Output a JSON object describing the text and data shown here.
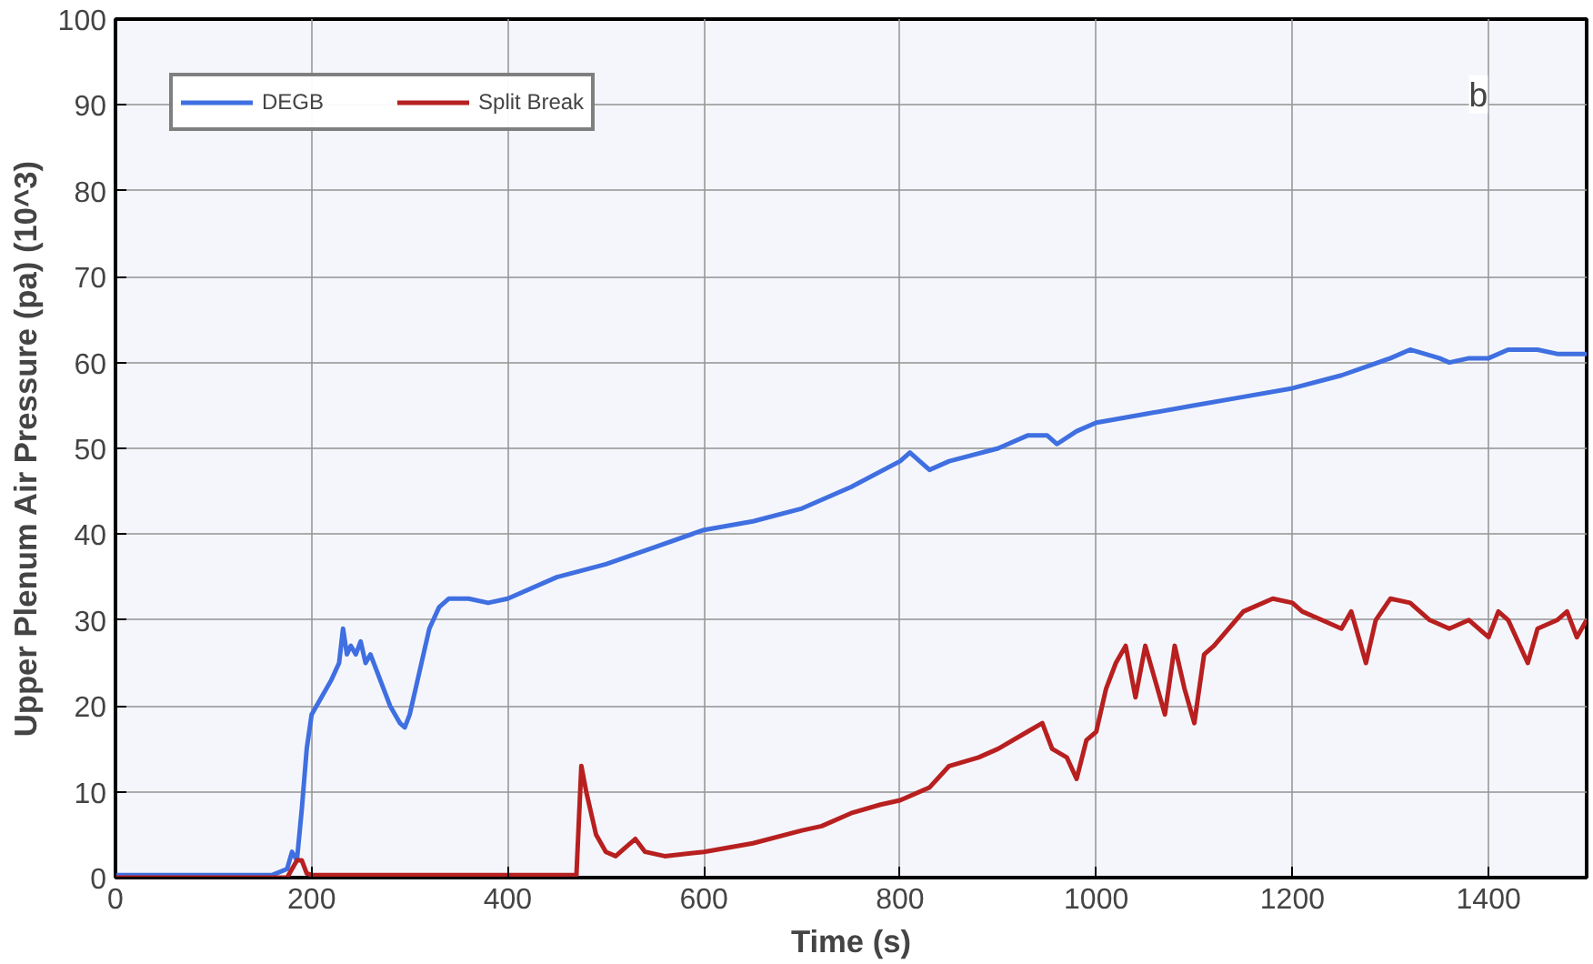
{
  "chart_data": {
    "type": "line",
    "xlabel": "Time (s)",
    "ylabel": "Upper Plenum Air Pressure (pa) (10^3)",
    "xlim": [
      0,
      1500
    ],
    "ylim": [
      0,
      100
    ],
    "xticks": [
      0,
      200,
      400,
      600,
      800,
      1000,
      1200,
      1400
    ],
    "yticks": [
      0,
      10,
      20,
      30,
      40,
      50,
      60,
      70,
      80,
      90,
      100
    ],
    "grid": true,
    "legend": "top left",
    "annotations": [
      "b"
    ],
    "series": [
      {
        "name": "DEGB",
        "color": "#3f6fe0",
        "x": [
          0,
          160,
          175,
          180,
          185,
          190,
          195,
          200,
          210,
          220,
          228,
          232,
          236,
          240,
          245,
          250,
          255,
          260,
          270,
          280,
          290,
          295,
          300,
          310,
          320,
          330,
          340,
          360,
          380,
          400,
          450,
          500,
          550,
          600,
          650,
          700,
          750,
          800,
          810,
          820,
          830,
          850,
          900,
          930,
          950,
          960,
          980,
          1000,
          1050,
          1100,
          1150,
          1200,
          1250,
          1300,
          1320,
          1350,
          1360,
          1380,
          1400,
          1420,
          1450,
          1470,
          1500
        ],
        "values": [
          0.3,
          0.3,
          1,
          3,
          2,
          8,
          15,
          19,
          21,
          23,
          25,
          29,
          26,
          27,
          26,
          27.5,
          25,
          26,
          23,
          20,
          18,
          17.5,
          19,
          24,
          29,
          31.5,
          32.5,
          32.5,
          32,
          32.5,
          35,
          36.5,
          38.5,
          40.5,
          41.5,
          43,
          45.5,
          48.5,
          49.5,
          48.5,
          47.5,
          48.5,
          50,
          51.5,
          51.5,
          50.5,
          52,
          53,
          54,
          55,
          56,
          57,
          58.5,
          60.5,
          61.5,
          60.5,
          60,
          60.5,
          60.5,
          61.5,
          61.5,
          61,
          61
        ]
      },
      {
        "name": "Split Break",
        "color": "#b82020",
        "x": [
          0,
          175,
          185,
          190,
          195,
          200,
          300,
          400,
          470,
          475,
          480,
          490,
          500,
          510,
          520,
          530,
          540,
          560,
          600,
          650,
          700,
          720,
          750,
          780,
          800,
          830,
          850,
          880,
          900,
          930,
          945,
          955,
          970,
          980,
          990,
          1000,
          1010,
          1020,
          1030,
          1040,
          1050,
          1060,
          1070,
          1080,
          1090,
          1100,
          1110,
          1120,
          1150,
          1180,
          1200,
          1210,
          1230,
          1250,
          1260,
          1275,
          1285,
          1300,
          1320,
          1340,
          1360,
          1380,
          1400,
          1410,
          1420,
          1440,
          1450,
          1470,
          1480,
          1490,
          1500
        ],
        "values": [
          0,
          0,
          2,
          2,
          0.5,
          0.3,
          0.3,
          0.3,
          0.3,
          13,
          10,
          5,
          3,
          2.5,
          3.5,
          4.5,
          3,
          2.5,
          3,
          4,
          5.5,
          6,
          7.5,
          8.5,
          9,
          10.5,
          13,
          14,
          15,
          17,
          18,
          15,
          14,
          11.5,
          16,
          17,
          22,
          25,
          27,
          21,
          27,
          23,
          19,
          27,
          22,
          18,
          26,
          27,
          31,
          32.5,
          32,
          31,
          30,
          29,
          31,
          25,
          30,
          32.5,
          32,
          30,
          29,
          30,
          28,
          31,
          30,
          25,
          29,
          30,
          31,
          28,
          30
        ]
      }
    ]
  }
}
